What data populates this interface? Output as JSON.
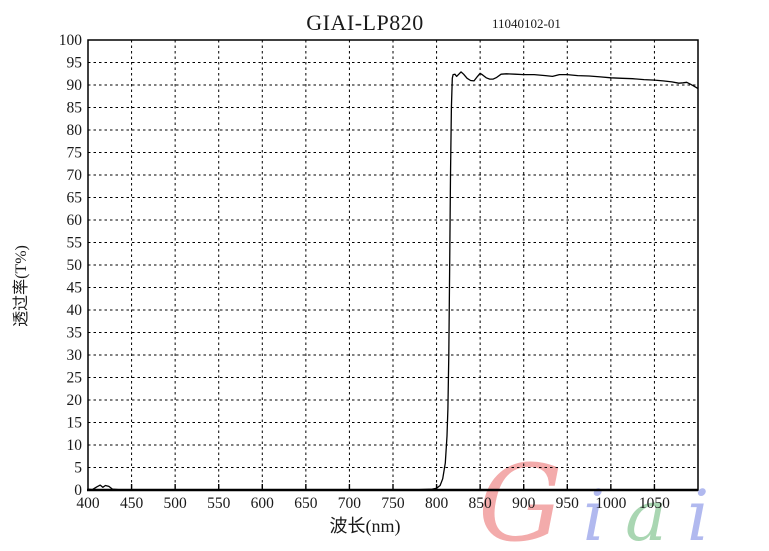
{
  "title": "GIAI-LP820",
  "subtitle": "11040102-01",
  "watermark": {
    "text": "Giai",
    "letters": [
      {
        "char": "G",
        "color": "#f2a2a2"
      },
      {
        "char": "i",
        "color": "#a9b2ee"
      },
      {
        "char": "a",
        "color": "#a0d2aa"
      },
      {
        "char": "i",
        "color": "#a9b2ee"
      }
    ]
  },
  "chart_data": {
    "type": "line",
    "title": "GIAI-LP820",
    "subtitle": "11040102-01",
    "xlabel": "波长(nm)",
    "ylabel": "透过率(T%)",
    "xlim": [
      400,
      1100
    ],
    "ylim": [
      0,
      100
    ],
    "x_tick_step": 50,
    "y_tick_step": 5,
    "x_tick_labels": [
      "400",
      "450",
      "500",
      "550",
      "600",
      "650",
      "700",
      "750",
      "800",
      "850",
      "900",
      "950",
      "1000",
      "1050"
    ],
    "y_tick_labels": [
      "0",
      "5",
      "10",
      "15",
      "20",
      "25",
      "30",
      "35",
      "40",
      "45",
      "50",
      "55",
      "60",
      "65",
      "70",
      "75",
      "80",
      "85",
      "90",
      "95",
      "100"
    ],
    "grid": "dashed",
    "legend": "none",
    "line_color": "#000000",
    "frame_color": "#000000",
    "series": [
      {
        "name": "transmittance",
        "points": [
          [
            400,
            0.2
          ],
          [
            405,
            0.1
          ],
          [
            410,
            0.7
          ],
          [
            414,
            1.1
          ],
          [
            417,
            0.6
          ],
          [
            420,
            1.0
          ],
          [
            424,
            0.8
          ],
          [
            428,
            0.2
          ],
          [
            435,
            0.1
          ],
          [
            460,
            0.1
          ],
          [
            500,
            0.1
          ],
          [
            550,
            0.1
          ],
          [
            600,
            0.1
          ],
          [
            650,
            0.1
          ],
          [
            700,
            0.1
          ],
          [
            750,
            0.1
          ],
          [
            780,
            0.1
          ],
          [
            795,
            0.2
          ],
          [
            800,
            0.4
          ],
          [
            804,
            1.0
          ],
          [
            807,
            2.5
          ],
          [
            810,
            6.0
          ],
          [
            812,
            12.0
          ],
          [
            813,
            18.0
          ],
          [
            814,
            30.0
          ],
          [
            815,
            48.0
          ],
          [
            816,
            70.0
          ],
          [
            817,
            85.0
          ],
          [
            818,
            91.5
          ],
          [
            819,
            92.3
          ],
          [
            821,
            92.4
          ],
          [
            823,
            91.9
          ],
          [
            826,
            92.5
          ],
          [
            828,
            92.9
          ],
          [
            831,
            92.4
          ],
          [
            835,
            91.5
          ],
          [
            839,
            91.0
          ],
          [
            843,
            90.9
          ],
          [
            847,
            91.9
          ],
          [
            850,
            92.6
          ],
          [
            853,
            92.2
          ],
          [
            857,
            91.6
          ],
          [
            861,
            91.3
          ],
          [
            865,
            91.3
          ],
          [
            869,
            91.7
          ],
          [
            874,
            92.4
          ],
          [
            880,
            92.5
          ],
          [
            890,
            92.4
          ],
          [
            900,
            92.3
          ],
          [
            912,
            92.3
          ],
          [
            925,
            92.1
          ],
          [
            933,
            91.9
          ],
          [
            941,
            92.3
          ],
          [
            950,
            92.3
          ],
          [
            962,
            92.1
          ],
          [
            975,
            92.0
          ],
          [
            988,
            91.8
          ],
          [
            1000,
            91.6
          ],
          [
            1013,
            91.5
          ],
          [
            1025,
            91.4
          ],
          [
            1038,
            91.2
          ],
          [
            1050,
            91.1
          ],
          [
            1060,
            90.9
          ],
          [
            1070,
            90.7
          ],
          [
            1078,
            90.4
          ],
          [
            1083,
            90.5
          ],
          [
            1087,
            90.6
          ],
          [
            1091,
            90.2
          ],
          [
            1095,
            89.8
          ],
          [
            1100,
            89.2
          ]
        ]
      }
    ]
  }
}
